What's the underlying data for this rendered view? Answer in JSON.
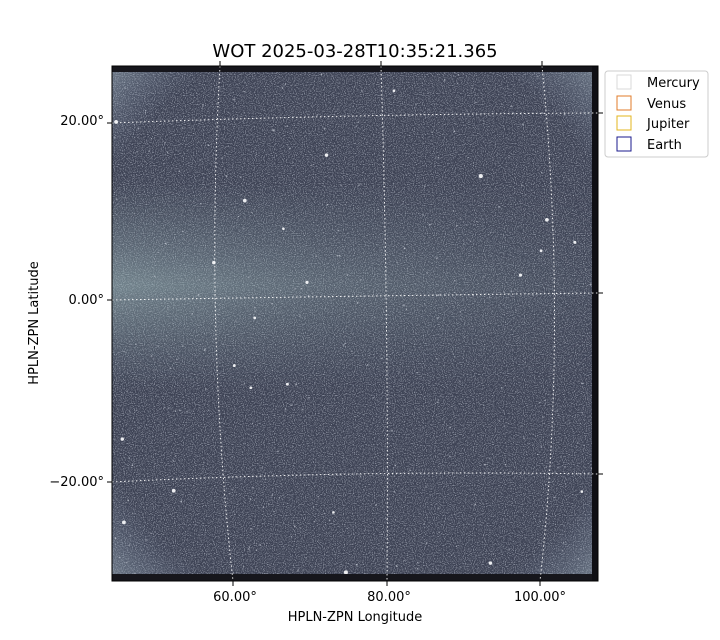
{
  "chart_data": {
    "type": "heatmap",
    "title": "WOT 2025-03-28T10:35:21.365",
    "xlabel": "HPLN-ZPN Longitude",
    "ylabel": "HPLN-ZPN Latitude",
    "x_ticks": [
      "60.00°",
      "80.00°",
      "100.00°"
    ],
    "y_ticks": [
      "20.00°",
      "0.00°",
      "−20.00°"
    ],
    "grid": true,
    "colormap": "bone",
    "legend": {
      "placement": "upper-right-outside",
      "entries": [
        {
          "name": "Mercury",
          "color": "#d9d9d9"
        },
        {
          "name": "Venus",
          "color": "#e07b28"
        },
        {
          "name": "Jupiter",
          "color": "#e3b51e"
        },
        {
          "name": "Earth",
          "color": "#1a1a8c"
        }
      ]
    }
  }
}
